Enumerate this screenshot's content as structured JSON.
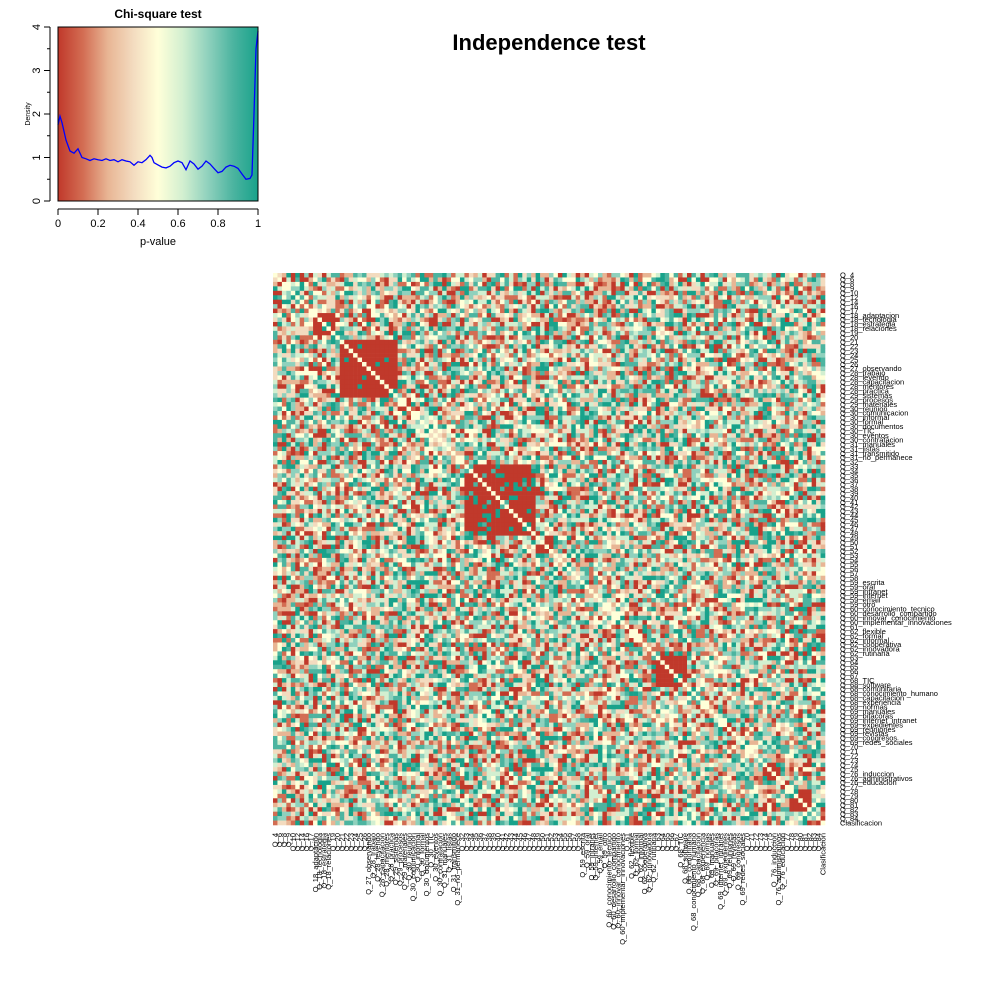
{
  "main_title": "Independence test",
  "colors": {
    "palette": [
      "#c0392b",
      "#d36d53",
      "#e8b594",
      "#f3dbbf",
      "#ffffd9",
      "#d2efd0",
      "#8fd1bd",
      "#4cb4a0",
      "#18a28b"
    ],
    "density_line": "#0000ff",
    "diagonal": "#ffffd9"
  },
  "chart_data": [
    {
      "type": "area",
      "title": "Chi-square test",
      "xlabel": "p-value",
      "ylabel": "Density",
      "xlim": [
        0,
        1
      ],
      "ylim": [
        0,
        4
      ],
      "xticks": [
        "0",
        "0.2",
        "0.4",
        "0.6",
        "0.8",
        "1"
      ],
      "yticks": [
        "0",
        "1",
        "2",
        "3",
        "4"
      ],
      "background": "color gradient over p-value from red (0) through pale yellow (0.5) to teal (1)",
      "series": [
        {
          "values": [
            [
              0.0,
              1.75
            ],
            [
              0.01,
              1.95
            ],
            [
              0.02,
              1.8
            ],
            [
              0.04,
              1.4
            ],
            [
              0.06,
              1.15
            ],
            [
              0.08,
              1.1
            ],
            [
              0.1,
              1.2
            ],
            [
              0.12,
              1.0
            ],
            [
              0.14,
              0.97
            ],
            [
              0.16,
              0.93
            ],
            [
              0.18,
              0.97
            ],
            [
              0.2,
              0.95
            ],
            [
              0.22,
              0.93
            ],
            [
              0.24,
              0.97
            ],
            [
              0.26,
              0.93
            ],
            [
              0.28,
              0.95
            ],
            [
              0.3,
              0.9
            ],
            [
              0.32,
              0.95
            ],
            [
              0.34,
              0.92
            ],
            [
              0.36,
              0.9
            ],
            [
              0.38,
              0.82
            ],
            [
              0.4,
              0.9
            ],
            [
              0.42,
              0.88
            ],
            [
              0.44,
              0.95
            ],
            [
              0.46,
              1.05
            ],
            [
              0.47,
              1.0
            ],
            [
              0.48,
              0.88
            ],
            [
              0.5,
              0.83
            ],
            [
              0.52,
              0.78
            ],
            [
              0.54,
              0.76
            ],
            [
              0.56,
              0.8
            ],
            [
              0.58,
              0.88
            ],
            [
              0.6,
              0.92
            ],
            [
              0.62,
              0.88
            ],
            [
              0.64,
              0.72
            ],
            [
              0.66,
              0.92
            ],
            [
              0.68,
              0.85
            ],
            [
              0.7,
              0.73
            ],
            [
              0.72,
              0.8
            ],
            [
              0.74,
              0.92
            ],
            [
              0.76,
              0.85
            ],
            [
              0.78,
              0.75
            ],
            [
              0.8,
              0.65
            ],
            [
              0.82,
              0.68
            ],
            [
              0.84,
              0.78
            ],
            [
              0.86,
              0.82
            ],
            [
              0.88,
              0.8
            ],
            [
              0.9,
              0.75
            ],
            [
              0.92,
              0.62
            ],
            [
              0.94,
              0.5
            ],
            [
              0.96,
              0.52
            ],
            [
              0.97,
              0.6
            ],
            [
              0.98,
              2.0
            ],
            [
              0.99,
              3.5
            ],
            [
              1.0,
              3.9
            ]
          ]
        }
      ]
    },
    {
      "type": "heatmap",
      "title": "",
      "description": "Symmetric matrix of pairwise chi-square test p-values between survey variables; diagonal cells pale",
      "row_labels": [
        "Q_4",
        "Q_6",
        "Q_8",
        "Q_9",
        "Q_10",
        "Q_12",
        "Q_14",
        "Q_16",
        "Q_17",
        "Q_18_adaptacion",
        "Q_18_tecnologia",
        "Q_18_estrategia",
        "Q_18_relaciones",
        "Q_19",
        "Q_20",
        "Q_21",
        "Q_22",
        "Q_23",
        "Q_24",
        "Q_25",
        "Q_26",
        "Q_27_observando",
        "Q_28_trabajo",
        "Q_28_leyendo",
        "Q_28_capacitacion",
        "Q_28_mentores",
        "Q_28_practica",
        "Q_29_sistemas",
        "Q_29_procesos",
        "Q_29_materiales",
        "Q_30_reunion",
        "Q_30_comunicacion",
        "Q_30_informal",
        "Q_30_formal",
        "Q_30_documentos",
        "Q_30_TIC",
        "Q_30_eventos",
        "Q_30_contratacion",
        "Q_31_manuales",
        "Q_31_listas",
        "Q_31_transmitido",
        "Q_31_no_permanece",
        "Q_32",
        "Q_33",
        "Q_34",
        "Q_35",
        "Q_36",
        "Q_37",
        "Q_38",
        "Q_39",
        "Q_40",
        "Q_41",
        "Q_42",
        "Q_43",
        "Q_44",
        "Q_45",
        "Q_46",
        "Q_47",
        "Q_48",
        "Q_49",
        "Q_50",
        "Q_51",
        "Q_52",
        "Q_53",
        "Q_54",
        "Q_55",
        "Q_56",
        "Q_57",
        "Q_58",
        "Q_59_escrita",
        "Q_59_oral",
        "Q_59_intranet",
        "Q_59_internet",
        "Q_59_email",
        "Q_59_otro",
        "Q_60_conocimiento_tecnico",
        "Q_60_desarrollo_compartido",
        "Q_60_innovar_conocimiento",
        "Q_60_implementar_innovaciones",
        "Q_61",
        "Q_62_flexible",
        "Q_62_formal",
        "Q_62_informal",
        "Q_62_cooperativa",
        "Q_62_innovadora",
        "Q_62_rutinaria",
        "Q_63",
        "Q_64",
        "Q_65",
        "Q_66",
        "Q_67",
        "Q_68_TIC",
        "Q_68_software",
        "Q_68_comunitaria",
        "Q_68_conocimiento_humano",
        "Q_68_capacitacion",
        "Q_68_experiencia",
        "Q_69_normas",
        "Q_69_manuales",
        "Q_69_bitacoras",
        "Q_69_internet_intranet",
        "Q_69_expedientes",
        "Q_69_reuniones",
        "Q_69_revistas",
        "Q_69_congresos",
        "Q_69_redes_sociales",
        "Q_70",
        "Q_71",
        "Q_72",
        "Q_73",
        "Q_74",
        "Q_75",
        "Q_76_induccion",
        "Q_76_administrativos",
        "Q_76_educacion",
        "Q_77",
        "Q_78",
        "Q_79",
        "Q_80",
        "Q_81",
        "Q_82",
        "Q_83",
        "Q_84",
        "Clasificacion"
      ]
    }
  ]
}
